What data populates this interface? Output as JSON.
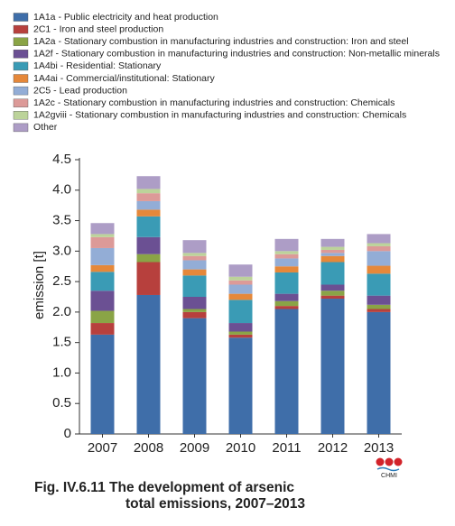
{
  "chart_data": {
    "type": "stacked-bar",
    "title": [
      "Fig. IV.6.11  The development of arsenic",
      "total emissions, 2007–2013"
    ],
    "y_label": "emission [t]",
    "logo_text": "CHMI",
    "categories": [
      "2007",
      "2008",
      "2009",
      "2010",
      "2011",
      "2012",
      "2013"
    ],
    "series": [
      {
        "name": "1A1a - Public electricity and heat production",
        "color": "#3f6ea9",
        "values": [
          1.63,
          2.28,
          1.9,
          1.58,
          2.05,
          2.22,
          2.0
        ]
      },
      {
        "name": "2C1 - Iron and steel production",
        "color": "#b7403d",
        "values": [
          0.19,
          0.54,
          0.1,
          0.05,
          0.05,
          0.05,
          0.05
        ]
      },
      {
        "name": "1A2a - Stationary combustion in manufacturing industries and construction: Iron and steel",
        "color": "#8aa446",
        "values": [
          0.2,
          0.13,
          0.05,
          0.05,
          0.08,
          0.08,
          0.07
        ]
      },
      {
        "name": "1A2f - Stationary combustion in manufacturing industries and construction: Non-metallic minerals",
        "color": "#6b5093",
        "values": [
          0.33,
          0.28,
          0.2,
          0.14,
          0.12,
          0.1,
          0.15
        ]
      },
      {
        "name": "1A4bi - Residential: Stationary",
        "color": "#3a9bb5",
        "values": [
          0.31,
          0.34,
          0.35,
          0.38,
          0.35,
          0.37,
          0.36
        ]
      },
      {
        "name": "1A4ai - Commercial/institutional: Stationary",
        "color": "#e5883a",
        "values": [
          0.11,
          0.11,
          0.1,
          0.1,
          0.1,
          0.1,
          0.13
        ]
      },
      {
        "name": "2C5 - Lead production",
        "color": "#93add6",
        "values": [
          0.28,
          0.14,
          0.15,
          0.15,
          0.13,
          0.05,
          0.24
        ]
      },
      {
        "name": "1A2c - Stationary combustion in manufacturing industries and construction: Chemicals",
        "color": "#dc9a98",
        "values": [
          0.18,
          0.13,
          0.07,
          0.07,
          0.07,
          0.05,
          0.08
        ]
      },
      {
        "name": "1A2gviii - Stationary combustion in manufacturing industries and construction: Chemicals",
        "color": "#bcd39a",
        "values": [
          0.05,
          0.07,
          0.05,
          0.06,
          0.05,
          0.05,
          0.05
        ]
      },
      {
        "name": "Other",
        "color": "#ad9dc6",
        "values": [
          0.18,
          0.21,
          0.21,
          0.2,
          0.2,
          0.13,
          0.15
        ]
      }
    ],
    "ylim": [
      0,
      4.5
    ],
    "yticks": [
      0,
      0.5,
      {
        "value": 1,
        "label": "1.0"
      },
      1.5,
      {
        "value": 2,
        "label": "2.0"
      },
      2.5,
      {
        "value": 3,
        "label": "3.0"
      },
      3.5,
      {
        "value": 4,
        "label": "4.0"
      },
      4.5
    ],
    "grid": false,
    "legend": "top"
  }
}
